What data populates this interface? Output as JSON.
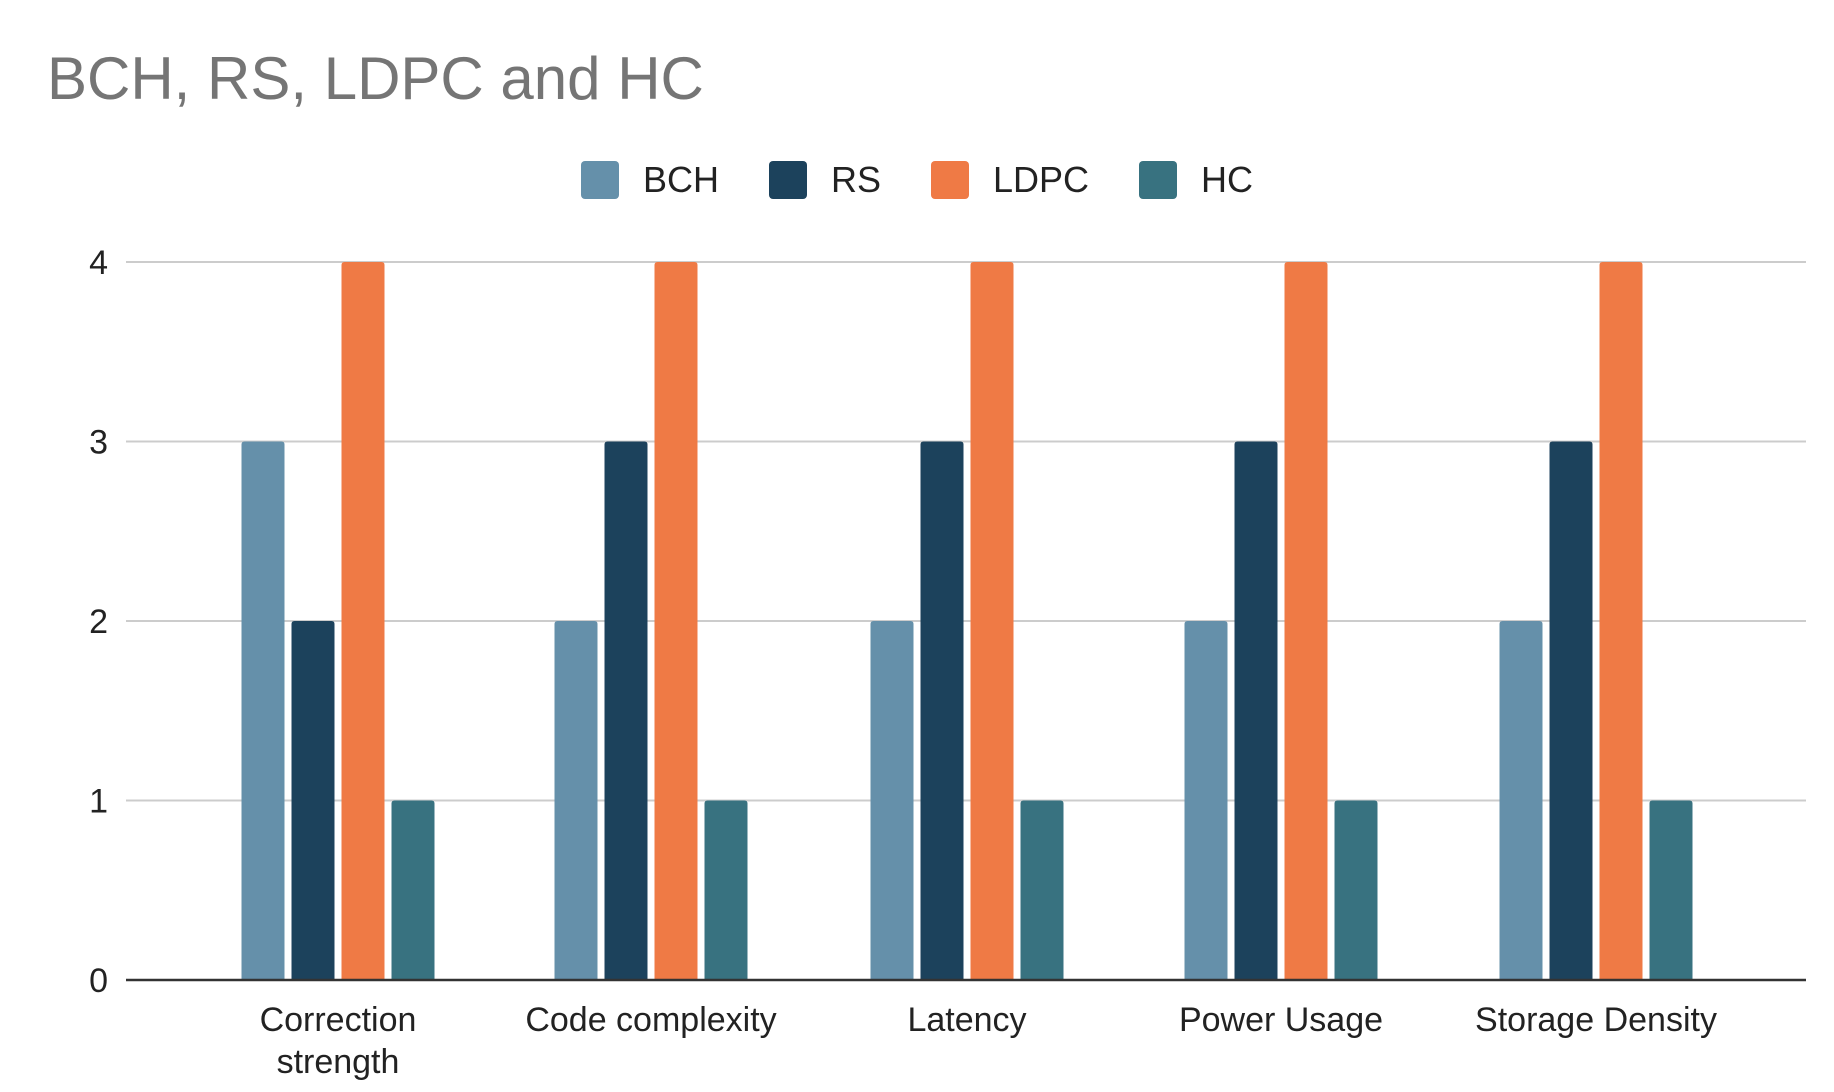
{
  "chart_data": {
    "type": "bar",
    "title": "BCH, RS, LDPC and HC",
    "xlabel": "",
    "ylabel": "",
    "categories": [
      [
        "Correction",
        "strength"
      ],
      [
        "Code complexity"
      ],
      [
        "Latency"
      ],
      [
        "Power Usage"
      ],
      [
        "Storage Density"
      ]
    ],
    "series": [
      {
        "name": "BCH",
        "color": "#6590aa",
        "values": [
          3,
          2,
          2,
          2,
          2
        ]
      },
      {
        "name": "RS",
        "color": "#1c425c",
        "values": [
          2,
          3,
          3,
          3,
          3
        ]
      },
      {
        "name": "LDPC",
        "color": "#ef7a45",
        "values": [
          4,
          4,
          4,
          4,
          4
        ]
      },
      {
        "name": "HC",
        "color": "#387280",
        "values": [
          1,
          1,
          1,
          1,
          1
        ]
      }
    ],
    "ylim": [
      0,
      4
    ],
    "yticks": [
      "0",
      "1",
      "2",
      "3",
      "4"
    ],
    "grid": true,
    "legend_position": "top"
  }
}
